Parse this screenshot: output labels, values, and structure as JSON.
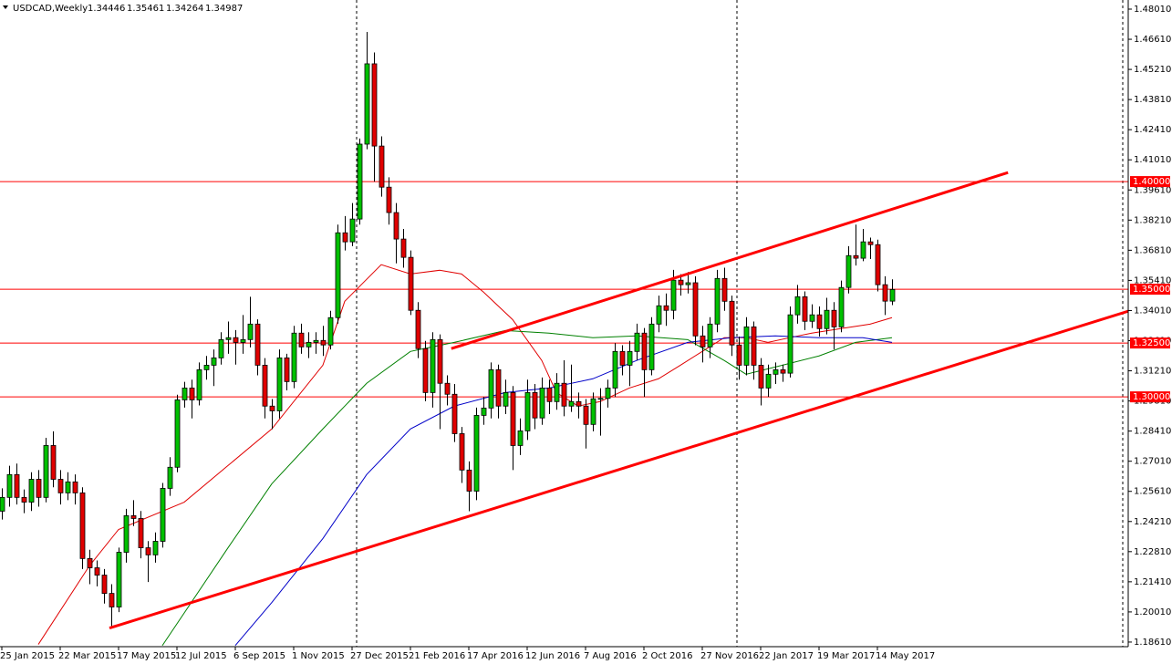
{
  "chart_data": {
    "type": "candlestick",
    "title": "USDCAD,Weekly",
    "categories": [
      "25 Jan 2015",
      null,
      null,
      null,
      null,
      null,
      null,
      null,
      "22 Mar 2015",
      null,
      null,
      null,
      null,
      null,
      null,
      null,
      "17 May 2015",
      null,
      null,
      null,
      null,
      null,
      null,
      null,
      "12 Jul 2015",
      null,
      null,
      null,
      null,
      null,
      null,
      null,
      "6 Sep 2015",
      null,
      null,
      null,
      null,
      null,
      null,
      null,
      "1 Nov 2015",
      null,
      null,
      null,
      null,
      null,
      null,
      null,
      "27 Dec 2015",
      null,
      null,
      null,
      null,
      null,
      null,
      null,
      "21 Feb 2016",
      null,
      null,
      null,
      null,
      null,
      null,
      null,
      "17 Apr 2016",
      null,
      null,
      null,
      null,
      null,
      null,
      null,
      "12 Jun 2016",
      null,
      null,
      null,
      null,
      null,
      null,
      null,
      "7 Aug 2016",
      null,
      null,
      null,
      null,
      null,
      null,
      null,
      "2 Oct 2016",
      null,
      null,
      null,
      null,
      null,
      null,
      null,
      "27 Nov 2016",
      null,
      null,
      null,
      null,
      null,
      null,
      null,
      "22 Jan 2017",
      null,
      null,
      null,
      null,
      null,
      null,
      null,
      "19 Mar 2017",
      null,
      null,
      null,
      null,
      null,
      null,
      null,
      "14 May 2017",
      null,
      null
    ],
    "open": [
      1.2469,
      1.2533,
      1.2639,
      1.2533,
      1.2511,
      1.2617,
      1.2533,
      1.2774,
      1.2617,
      1.2554,
      1.2605,
      1.2554,
      1.2249,
      1.2206,
      1.2172,
      1.2087,
      1.2024,
      1.2278,
      1.2448,
      1.2435,
      1.2299,
      1.2266,
      1.2329,
      1.2575,
      1.2673,
      1.2986,
      1.3041,
      1.2986,
      1.3126,
      1.3147,
      1.3181,
      1.3266,
      1.3275,
      1.3253,
      1.3266,
      1.3338,
      1.3147,
      1.2957,
      1.2935,
      1.3181,
      1.3071,
      1.3296,
      1.3232,
      1.3253,
      1.3262,
      1.3241,
      1.3368,
      1.3762,
      1.372,
      1.3826,
      1.4174,
      1.4547,
      1.4165,
      1.3974,
      1.3856,
      1.3733,
      1.3648,
      1.3402,
      1.3224,
      1.302,
      1.3266,
      1.3063,
      1.3012,
      1.2829,
      1.266,
      1.2562,
      1.2914,
      1.2948,
      1.3126,
      1.2957,
      1.302,
      1.2774,
      1.2842,
      1.302,
      1.2902,
      1.3041,
      1.2978,
      1.3063,
      1.2957,
      1.2978,
      1.2957,
      1.2872,
      1.2991,
      1.2993,
      1.3041,
      1.3211,
      1.3147,
      1.3211,
      1.3296,
      1.3126,
      1.3338,
      1.3423,
      1.3402,
      1.3542,
      1.3521,
      1.353,
      1.3283,
      1.3232,
      1.3338,
      1.355,
      1.3444,
      1.3241,
      1.3147,
      1.3325,
      1.3147,
      1.3041,
      1.3105,
      1.3126,
      1.311,
      1.3381,
      1.3465,
      1.3351,
      1.3381,
      1.3317,
      1.3402,
      1.3325,
      1.3508,
      1.3656,
      1.3644,
      1.372,
      1.3707,
      1.3521,
      1.34446
    ],
    "high": [
      1.2575,
      1.268,
      1.269,
      1.257,
      1.265,
      1.266,
      1.281,
      1.284,
      1.266,
      1.265,
      1.264,
      1.258,
      1.229,
      1.224,
      1.22,
      1.213,
      1.23,
      1.248,
      1.252,
      1.247,
      1.233,
      1.237,
      1.26,
      1.272,
      1.301,
      1.307,
      1.308,
      1.316,
      1.319,
      1.322,
      1.33,
      1.335,
      1.331,
      1.338,
      1.3465,
      1.336,
      1.318,
      1.299,
      1.322,
      1.32,
      1.333,
      1.334,
      1.33,
      1.33,
      1.333,
      1.34,
      1.38,
      1.384,
      1.39,
      1.42,
      1.4695,
      1.46,
      1.421,
      1.402,
      1.39,
      1.378,
      1.368,
      1.344,
      1.326,
      1.33,
      1.329,
      1.31,
      1.306,
      1.286,
      1.27,
      1.295,
      1.3,
      1.316,
      1.315,
      1.308,
      1.305,
      1.29,
      1.308,
      1.306,
      1.309,
      1.308,
      1.311,
      1.317,
      1.315,
      1.302,
      1.299,
      1.302,
      1.304,
      1.308,
      1.325,
      1.324,
      1.326,
      1.334,
      1.332,
      1.337,
      1.347,
      1.348,
      1.359,
      1.357,
      1.358,
      1.356,
      1.333,
      1.337,
      1.359,
      1.36,
      1.347,
      1.328,
      1.337,
      1.335,
      1.318,
      1.315,
      1.316,
      1.315,
      1.342,
      1.352,
      1.349,
      1.343,
      1.342,
      1.346,
      1.344,
      1.354,
      1.37,
      1.38,
      1.378,
      1.374,
      1.373,
      1.356,
      1.35461
    ],
    "low": [
      1.243,
      1.249,
      1.25,
      1.246,
      1.247,
      1.249,
      1.251,
      1.258,
      1.25,
      1.252,
      1.25,
      1.22,
      1.213,
      1.212,
      1.204,
      1.1926,
      1.2,
      1.223,
      1.24,
      1.225,
      1.214,
      1.223,
      1.23,
      1.254,
      1.265,
      1.295,
      1.29,
      1.296,
      1.308,
      1.305,
      1.315,
      1.32,
      1.315,
      1.32,
      1.323,
      1.31,
      1.29,
      1.285,
      1.29,
      1.303,
      1.304,
      1.32,
      1.318,
      1.32,
      1.319,
      1.322,
      1.334,
      1.368,
      1.37,
      1.38,
      1.415,
      1.4,
      1.393,
      1.38,
      1.362,
      1.36,
      1.338,
      1.318,
      1.298,
      1.295,
      1.285,
      1.296,
      1.279,
      1.26,
      1.2469,
      1.252,
      1.287,
      1.29,
      1.29,
      1.292,
      1.266,
      1.273,
      1.28,
      1.285,
      1.287,
      1.292,
      1.294,
      1.291,
      1.293,
      1.29,
      1.276,
      1.284,
      1.282,
      1.295,
      1.3,
      1.31,
      1.305,
      1.317,
      1.3,
      1.31,
      1.33,
      1.333,
      1.336,
      1.347,
      1.348,
      1.324,
      1.316,
      1.318,
      1.33,
      1.34,
      1.319,
      1.308,
      1.31,
      1.308,
      1.296,
      1.3,
      1.306,
      1.307,
      1.309,
      1.334,
      1.331,
      1.332,
      1.328,
      1.329,
      1.322,
      1.33,
      1.348,
      1.361,
      1.363,
      1.364,
      1.349,
      1.338,
      1.34264
    ],
    "close": [
      1.2533,
      1.2639,
      1.2533,
      1.2511,
      1.2617,
      1.2533,
      1.2774,
      1.2617,
      1.2554,
      1.2605,
      1.2554,
      1.2249,
      1.2206,
      1.2172,
      1.2087,
      1.2024,
      1.2278,
      1.2448,
      1.2435,
      1.2299,
      1.2266,
      1.2329,
      1.2575,
      1.2673,
      1.2986,
      1.3041,
      1.2986,
      1.3126,
      1.3147,
      1.3181,
      1.3266,
      1.3275,
      1.3253,
      1.3266,
      1.3338,
      1.3147,
      1.2957,
      1.2935,
      1.3181,
      1.3071,
      1.3296,
      1.3232,
      1.3253,
      1.3262,
      1.3241,
      1.3368,
      1.3762,
      1.372,
      1.3826,
      1.4174,
      1.4547,
      1.4165,
      1.3974,
      1.3856,
      1.3733,
      1.3648,
      1.3402,
      1.3224,
      1.302,
      1.3266,
      1.3063,
      1.3012,
      1.2829,
      1.266,
      1.2562,
      1.2914,
      1.2948,
      1.3126,
      1.2957,
      1.302,
      1.2774,
      1.2842,
      1.302,
      1.2902,
      1.3041,
      1.2978,
      1.3063,
      1.2957,
      1.2978,
      1.2957,
      1.2872,
      1.2991,
      1.2993,
      1.3041,
      1.3211,
      1.3147,
      1.3211,
      1.3296,
      1.3126,
      1.3338,
      1.3423,
      1.3402,
      1.3542,
      1.3521,
      1.353,
      1.3283,
      1.3232,
      1.3338,
      1.355,
      1.3444,
      1.3241,
      1.3147,
      1.3325,
      1.3147,
      1.3041,
      1.3105,
      1.3126,
      1.311,
      1.3381,
      1.3465,
      1.3351,
      1.3381,
      1.3317,
      1.3402,
      1.3325,
      1.3508,
      1.3656,
      1.3644,
      1.372,
      1.3707,
      1.3521,
      1.34446,
      1.34987
    ],
    "up_color": "#00c000",
    "down_color": "#e00000",
    "overlays": [
      {
        "color": "#e00000",
        "x": [
          5,
          12,
          16,
          25,
          31,
          37,
          44,
          47,
          52,
          56,
          60,
          63,
          66,
          70,
          74,
          76,
          79,
          82,
          86,
          90,
          93,
          96,
          99,
          102,
          105,
          108,
          111,
          115,
          119,
          122
        ],
        "values": [
          1.185,
          1.2215,
          1.2384,
          1.2511,
          1.2681,
          1.2851,
          1.3147,
          1.3444,
          1.3614,
          1.3571,
          1.3588,
          1.3571,
          1.3487,
          1.3359,
          1.3169,
          1.302,
          1.2957,
          1.2978,
          1.3041,
          1.3084,
          1.3147,
          1.3211,
          1.3275,
          1.3275,
          1.3253,
          1.3275,
          1.3296,
          1.3317,
          1.3338,
          1.3368
        ]
      },
      {
        "color": "#008000",
        "x": [
          22,
          31,
          37,
          44,
          50,
          56,
          62,
          69,
          75,
          81,
          87,
          94,
          99,
          102,
          107,
          112,
          117,
          122
        ],
        "values": [
          1.1845,
          1.2299,
          1.2596,
          1.2851,
          1.3063,
          1.3211,
          1.3253,
          1.3308,
          1.3296,
          1.3275,
          1.3283,
          1.3266,
          1.3169,
          1.3105,
          1.3147,
          1.319,
          1.3253,
          1.3275
        ]
      },
      {
        "color": "#0000c8",
        "x": [
          32,
          37,
          44,
          50,
          56,
          62,
          69,
          75,
          81,
          87,
          94,
          100,
          106,
          112,
          118,
          122
        ],
        "values": [
          1.1845,
          1.2045,
          1.2342,
          1.2639,
          1.2851,
          1.2957,
          1.302,
          1.3041,
          1.3084,
          1.3169,
          1.3253,
          1.3275,
          1.3283,
          1.3275,
          1.3275,
          1.3253
        ]
      }
    ],
    "trendlines": [
      {
        "color": "#ff0000",
        "x": [
          14.75,
          154.75
        ],
        "values": [
          1.1926,
          1.3402
        ]
      },
      {
        "color": "#ff0000",
        "x": [
          61.6,
          137.9
        ],
        "values": [
          1.3224,
          1.4042
        ]
      }
    ],
    "levels": [
      {
        "value": 1.4,
        "label": "1.40000"
      },
      {
        "value": 1.35,
        "label": "1.35000"
      },
      {
        "value": 1.325,
        "label": "1.32500"
      },
      {
        "value": 1.3,
        "label": "1.30000"
      }
    ],
    "level_color": "#ff0000",
    "ylim": [
      1.18396,
      1.48434
    ],
    "yticks": [
      {
        "value": 1.4801,
        "label": "1.48010"
      },
      {
        "value": 1.4661,
        "label": "1.46610"
      },
      {
        "value": 1.4521,
        "label": "1.45210"
      },
      {
        "value": 1.4381,
        "label": "1.43810"
      },
      {
        "value": 1.4241,
        "label": "1.42410"
      },
      {
        "value": 1.4101,
        "label": "1.41010"
      },
      {
        "value": 1.3961,
        "label": "1.39610"
      },
      {
        "value": 1.3821,
        "label": "1.38210"
      },
      {
        "value": 1.3681,
        "label": "1.36810"
      },
      {
        "value": 1.3541,
        "label": "1.35410"
      },
      {
        "value": 1.3401,
        "label": "1.34010"
      },
      {
        "value": 1.3261,
        "label": "1.32610"
      },
      {
        "value": 1.3121,
        "label": "1.31210"
      },
      {
        "value": 1.2981,
        "label": "1.29810"
      },
      {
        "value": 1.2841,
        "label": "1.28410"
      },
      {
        "value": 1.2701,
        "label": "1.27010"
      },
      {
        "value": 1.2561,
        "label": "1.25610"
      },
      {
        "value": 1.2421,
        "label": "1.24210"
      },
      {
        "value": 1.2281,
        "label": "1.22810"
      },
      {
        "value": 1.2141,
        "label": "1.21410"
      },
      {
        "value": 1.2001,
        "label": "1.20010"
      },
      {
        "value": 1.1861,
        "label": "1.18610"
      }
    ]
  }
}
